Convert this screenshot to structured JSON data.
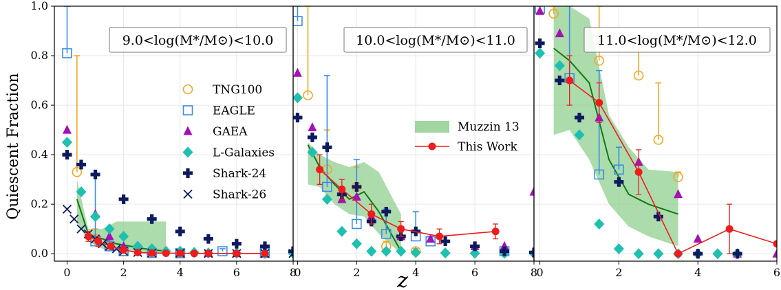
{
  "ylabel": "Quiescent Fraction",
  "xlabel": "z",
  "chart_data": [
    {
      "type": "scatter",
      "title": "9.0<log(M*/M⊙)<10.0",
      "xlim": [
        -0.45,
        8
      ],
      "ylim": [
        -0.03,
        1.0
      ],
      "xticks": [
        "0",
        "2",
        "4",
        "6",
        "8"
      ],
      "yticks": [
        "0.0",
        "0.2",
        "0.4",
        "0.6",
        "0.8",
        "1.0"
      ],
      "legend": {
        "placement": "center-right",
        "entries": [
          {
            "name": "TNG100",
            "marker": "circle-open",
            "color": "#f5a623"
          },
          {
            "name": "EAGLE",
            "marker": "square-open",
            "color": "#3a8ee6"
          },
          {
            "name": "GAEA",
            "marker": "triangle",
            "color": "#a312b5"
          },
          {
            "name": "L-Galaxies",
            "marker": "diamond",
            "color": "#1fc0b0"
          },
          {
            "name": "Shark-24",
            "marker": "plus",
            "color": "#0d1a5e"
          },
          {
            "name": "Shark-26",
            "marker": "x",
            "color": "#0d1a5e"
          }
        ]
      },
      "band": {
        "name": "Muzzin 13",
        "upper": [
          [
            0.35,
            0.3
          ],
          [
            0.75,
            0.1
          ],
          [
            1.25,
            0.1
          ],
          [
            1.75,
            0.13
          ],
          [
            2.25,
            0.13
          ],
          [
            2.75,
            0.13
          ],
          [
            3.5,
            0.13
          ]
        ],
        "lower": [
          [
            3.5,
            0.0
          ],
          [
            2.75,
            0.0
          ],
          [
            2.25,
            0.01
          ],
          [
            1.75,
            0.01
          ],
          [
            1.25,
            0.02
          ],
          [
            0.75,
            0.05
          ],
          [
            0.35,
            0.13
          ]
        ]
      },
      "median_line": [
        [
          0.35,
          0.22
        ],
        [
          0.75,
          0.08
        ],
        [
          1.25,
          0.06
        ],
        [
          1.75,
          0.04
        ],
        [
          2.25,
          0.03
        ],
        [
          2.75,
          0.02
        ],
        [
          3.5,
          0.01
        ]
      ],
      "this_work": {
        "x": [
          0.75,
          1.1,
          1.55,
          2.0,
          2.5,
          3.0,
          3.5,
          4.0,
          4.5,
          5.0,
          6.0,
          7.0
        ],
        "y": [
          0.07,
          0.05,
          0.03,
          0.015,
          0.005,
          0.003,
          0.002,
          0.002,
          0.001,
          0.001,
          0.001,
          0.001
        ],
        "err": [
          0.02,
          0.02,
          0.01,
          0.01,
          0.005,
          0.003,
          0.002,
          0.002,
          0.001,
          0.001,
          0.001,
          0.001
        ]
      },
      "series": [
        {
          "name": "TNG100",
          "x": [
            0.35,
            1.0,
            1.5,
            2.0,
            3.0,
            4.0
          ],
          "y": [
            0.33,
            0.06,
            0.03,
            0.01,
            0.005,
            0.002
          ],
          "yerr_hi": [
            0.8,
            0.1,
            0.05,
            0.02,
            0.01,
            0.005
          ]
        },
        {
          "name": "EAGLE",
          "x": [
            0.0,
            1.0,
            1.5,
            2.0,
            3.0,
            4.0,
            5.5,
            7.0
          ],
          "y": [
            0.81,
            0.05,
            0.03,
            0.01,
            0.003,
            0.002,
            0.01,
            0.003
          ],
          "yerr_hi": [
            1.0,
            0.32,
            0.06,
            0.02,
            0.006,
            0.004,
            0.02,
            0.006
          ]
        },
        {
          "name": "GAEA",
          "x": [
            0.0,
            1.0,
            1.5,
            2.0,
            3.0,
            4.0,
            5.0,
            6.0,
            7.0
          ],
          "y": [
            0.5,
            0.16,
            0.07,
            0.03,
            0.01,
            0.005,
            0.003,
            0.002,
            0.001
          ]
        },
        {
          "name": "L-Galaxies",
          "x": [
            0.0,
            0.5,
            1.0,
            1.5,
            2.0,
            2.5,
            3.0,
            3.5,
            4.0,
            4.5,
            5.0,
            6.0,
            7.0,
            8.0
          ],
          "y": [
            0.45,
            0.25,
            0.15,
            0.1,
            0.07,
            0.03,
            0.02,
            0.01,
            0.01,
            0.005,
            0.003,
            0.002,
            0.001,
            0.001
          ]
        },
        {
          "name": "Shark-24",
          "x": [
            0.0,
            0.5,
            1.0,
            2.0,
            3.0,
            4.0,
            5.0,
            6.0,
            7.0,
            8.0
          ],
          "y": [
            0.4,
            0.36,
            0.32,
            0.22,
            0.14,
            0.09,
            0.06,
            0.04,
            0.03,
            0.01
          ]
        },
        {
          "name": "Shark-26",
          "x": [
            0.0,
            0.25,
            0.5,
            0.75,
            1.0,
            1.25,
            1.5,
            1.75,
            2.0,
            2.5,
            3.0,
            4.0,
            5.0,
            6.0,
            7.0,
            8.0
          ],
          "y": [
            0.18,
            0.14,
            0.1,
            0.08,
            0.06,
            0.04,
            0.03,
            0.02,
            0.01,
            0.005,
            0.003,
            0.002,
            0.001,
            0.001,
            0.001,
            0.001
          ]
        }
      ]
    },
    {
      "type": "scatter",
      "title": "10.0<log(M*/M⊙)<11.0",
      "xlim": [
        -0.15,
        8
      ],
      "ylim": [
        -0.03,
        1.0
      ],
      "xticks": [
        "0",
        "2",
        "4",
        "6",
        "8"
      ],
      "legend": {
        "placement": "center-right",
        "entries": [
          {
            "name": "Muzzin 13",
            "style": "band",
            "color": "#90cf90"
          },
          {
            "name": "This Work",
            "style": "line-marker",
            "color": "#ee1c1c"
          }
        ]
      },
      "band": {
        "name": "Muzzin 13",
        "upper": [
          [
            0.35,
            0.45
          ],
          [
            0.75,
            0.4
          ],
          [
            1.25,
            0.37
          ],
          [
            1.75,
            0.35
          ],
          [
            2.25,
            0.37
          ],
          [
            2.75,
            0.33
          ],
          [
            3.5,
            0.16
          ]
        ],
        "lower": [
          [
            3.5,
            0.0
          ],
          [
            2.75,
            0.08
          ],
          [
            2.25,
            0.15
          ],
          [
            1.75,
            0.16
          ],
          [
            1.25,
            0.2
          ],
          [
            0.75,
            0.27
          ],
          [
            0.35,
            0.28
          ]
        ]
      },
      "median_line": [
        [
          0.35,
          0.44
        ],
        [
          0.75,
          0.35
        ],
        [
          1.25,
          0.28
        ],
        [
          1.75,
          0.22
        ],
        [
          2.25,
          0.25
        ],
        [
          2.75,
          0.17
        ],
        [
          3.5,
          0.01
        ]
      ],
      "this_work": {
        "x": [
          0.75,
          1.5,
          2.5,
          3.5,
          4.8,
          6.7
        ],
        "y": [
          0.34,
          0.26,
          0.16,
          0.1,
          0.07,
          0.09
        ],
        "err": [
          0.06,
          0.04,
          0.04,
          0.03,
          0.03,
          0.03
        ]
      },
      "series": [
        {
          "name": "TNG100",
          "x": [
            0.35,
            1.0,
            2.0,
            3.0,
            4.0
          ],
          "y": [
            0.64,
            0.34,
            0.27,
            0.03,
            0.01
          ],
          "yerr_hi": [
            1.0,
            0.5,
            0.35,
            0.05,
            0.02
          ]
        },
        {
          "name": "EAGLE",
          "x": [
            0.0,
            1.0,
            2.0,
            3.0,
            4.0,
            4.5,
            7.0
          ],
          "y": [
            0.94,
            0.27,
            0.12,
            0.08,
            0.07,
            0.05,
            0.01
          ],
          "yerr_hi": [
            1.0,
            0.72,
            0.38,
            0.18,
            0.17,
            0.07,
            0.02
          ]
        },
        {
          "name": "GAEA",
          "x": [
            0.0,
            0.5,
            1.5,
            2.0,
            2.5,
            3.5,
            4.5,
            6.0,
            7.0,
            8.0
          ],
          "y": [
            0.73,
            0.51,
            0.22,
            0.23,
            0.15,
            0.07,
            0.06,
            0.03,
            0.03,
            0.25
          ]
        },
        {
          "name": "L-Galaxies",
          "x": [
            0.0,
            0.5,
            1.0,
            1.5,
            2.0,
            2.5,
            3.0,
            3.5,
            4.0,
            5.0,
            6.0,
            7.0,
            8.0
          ],
          "y": [
            0.63,
            0.41,
            0.22,
            0.09,
            0.04,
            0.01,
            0.01,
            0.01,
            0.005,
            0.003,
            0.002,
            0.002,
            0.001
          ]
        },
        {
          "name": "Shark-24",
          "x": [
            0.0,
            0.5,
            1.0,
            1.5,
            2.0,
            2.5,
            3.0,
            3.5,
            4.0,
            5.0,
            6.0,
            7.0,
            8.0
          ],
          "y": [
            0.55,
            0.47,
            0.43,
            0.24,
            0.27,
            0.13,
            0.17,
            0.07,
            0.09,
            0.05,
            0.03,
            0.01,
            0.005
          ]
        }
      ]
    },
    {
      "type": "scatter",
      "title": "11.0<log(M*/M⊙)<12.0",
      "xlim": [
        -0.15,
        6
      ],
      "ylim": [
        -0.03,
        1.0
      ],
      "xticks": [
        "0",
        "2",
        "4",
        "6"
      ],
      "band": {
        "name": "Muzzin 13",
        "upper": [
          [
            0.35,
            1.0
          ],
          [
            0.75,
            1.0
          ],
          [
            1.25,
            0.95
          ],
          [
            1.75,
            0.56
          ],
          [
            2.25,
            0.43
          ],
          [
            2.75,
            0.34
          ],
          [
            3.5,
            0.33
          ]
        ],
        "lower": [
          [
            3.5,
            0.03
          ],
          [
            2.75,
            0.07
          ],
          [
            2.25,
            0.11
          ],
          [
            1.75,
            0.2
          ],
          [
            1.25,
            0.38
          ],
          [
            0.75,
            0.5
          ],
          [
            0.35,
            0.48
          ]
        ]
      },
      "median_line": [
        [
          0.35,
          0.83
        ],
        [
          0.75,
          0.78
        ],
        [
          1.25,
          0.69
        ],
        [
          1.75,
          0.38
        ],
        [
          2.25,
          0.24
        ],
        [
          2.75,
          0.2
        ],
        [
          3.5,
          0.16
        ]
      ],
      "this_work": {
        "x": [
          0.75,
          1.5,
          2.5,
          3.5,
          4.8,
          6.0
        ],
        "y": [
          0.7,
          0.61,
          0.33,
          0.0,
          0.1,
          0.04
        ],
        "err": [
          0.1,
          0.08,
          0.09,
          0.01,
          0.1,
          0.0
        ]
      },
      "series": [
        {
          "name": "TNG100",
          "x": [
            0.35,
            1.5,
            2.5,
            3.0,
            3.5
          ],
          "y": [
            0.97,
            0.78,
            0.72,
            0.46,
            0.31
          ],
          "yerr_hi": [
            1.0,
            1.0,
            0.87,
            0.69,
            0.33
          ]
        },
        {
          "name": "EAGLE",
          "x": [
            0.0,
            0.75,
            1.5,
            2.0
          ],
          "y": [
            0.99,
            0.71,
            0.32,
            0.34
          ],
          "yerr_hi": [
            1.0,
            1.0,
            0.74,
            0.43
          ]
        },
        {
          "name": "GAEA",
          "x": [
            0.0,
            0.5,
            1.5,
            2.5,
            3.5,
            4.0,
            5.0,
            6.0
          ],
          "y": [
            0.98,
            0.89,
            0.55,
            0.37,
            0.24,
            0.06,
            0.0,
            0.0
          ]
        },
        {
          "name": "L-Galaxies",
          "x": [
            0.0,
            0.5,
            1.0,
            1.5,
            2.0,
            2.5,
            3.0,
            3.5,
            4.0,
            4.5,
            5.0
          ],
          "y": [
            0.81,
            0.76,
            0.48,
            0.12,
            0.02,
            0.0,
            0.0,
            0.0,
            0.0,
            0.0,
            0.0
          ]
        },
        {
          "name": "Shark-24",
          "x": [
            0.0,
            0.5,
            1.0,
            2.0,
            3.0,
            4.0,
            5.0
          ],
          "y": [
            0.85,
            0.7,
            0.55,
            0.29,
            0.15,
            0.0,
            0.0
          ]
        }
      ]
    }
  ]
}
